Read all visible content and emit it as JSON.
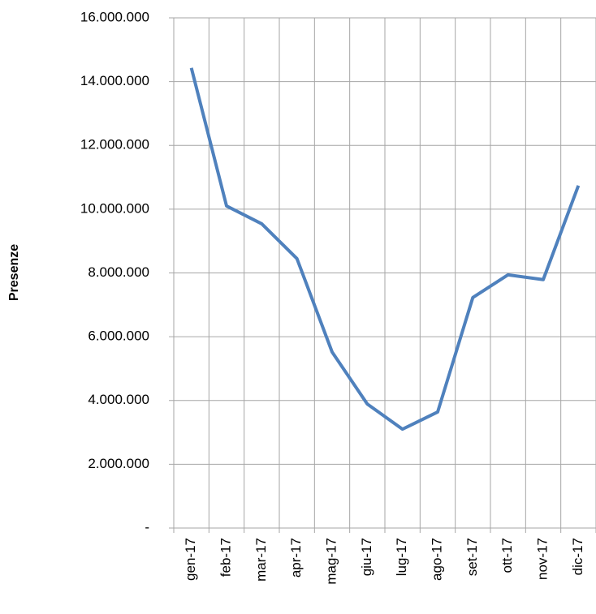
{
  "chart_data": {
    "type": "line",
    "y_label": "Presenze",
    "categories": [
      "gen-17",
      "feb-17",
      "mar-17",
      "apr-17",
      "mag-17",
      "giu-17",
      "lug-17",
      "ago-17",
      "set-17",
      "ott-17",
      "nov-17",
      "dic-17"
    ],
    "values": [
      14430000,
      10100000,
      9540000,
      8450000,
      5520000,
      3890000,
      3100000,
      3640000,
      7230000,
      7940000,
      7790000,
      10740000
    ],
    "color": "#4f81bd",
    "ylim": [
      0,
      16000000
    ],
    "yticks": [
      {
        "value": 0,
        "label": "-"
      },
      {
        "value": 2000000,
        "label": "2.000.000"
      },
      {
        "value": 4000000,
        "label": "4.000.000"
      },
      {
        "value": 6000000,
        "label": "6.000.000"
      },
      {
        "value": 8000000,
        "label": "8.000.000"
      },
      {
        "value": 10000000,
        "label": "10.000.000"
      },
      {
        "value": 12000000,
        "label": "12.000.000"
      },
      {
        "value": 14000000,
        "label": "14.000.000"
      },
      {
        "value": 16000000,
        "label": "16.000.000"
      }
    ],
    "grid": true
  }
}
